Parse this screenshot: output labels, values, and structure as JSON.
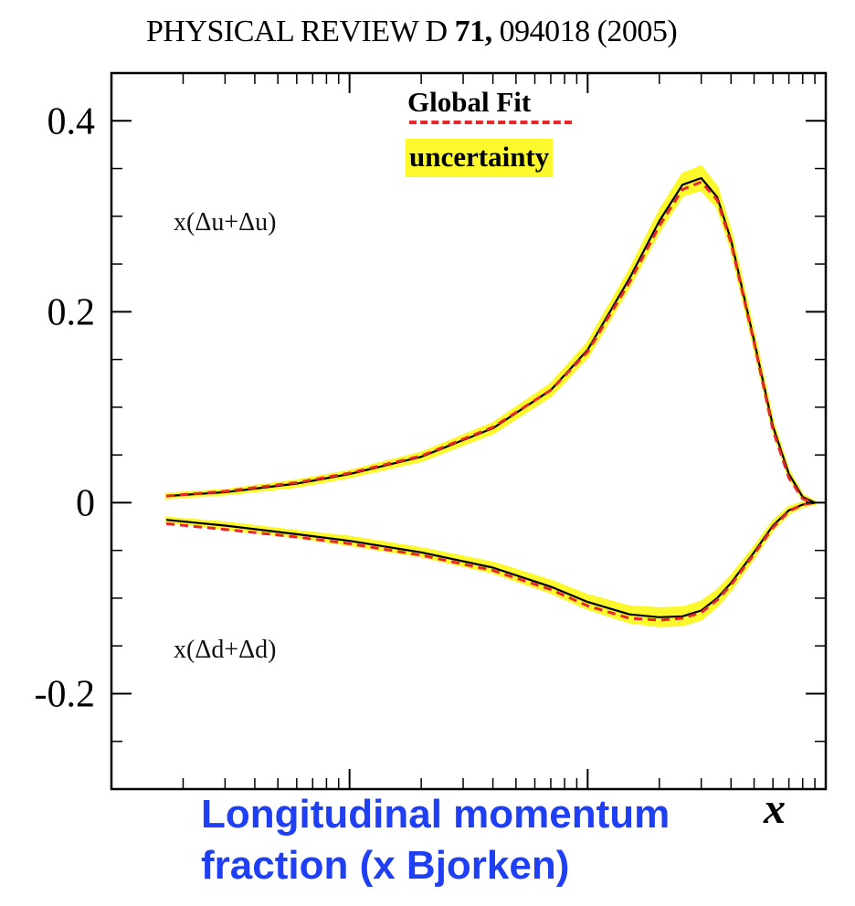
{
  "header": {
    "journal": "PHYSICAL REVIEW D",
    "volume": "71,",
    "article": "094018 (2005)"
  },
  "legend": {
    "fit_label": "Global Fit",
    "uncertainty_label": "uncertainty"
  },
  "labels": {
    "upper_curve": "x(Δu+Δu)",
    "lower_curve": "x(Δd+Δd)",
    "x_axis_symbol": "x",
    "x_axis_title_line1": "Longitudinal momentum",
    "x_axis_title_line2": "fraction (x Bjorken)"
  },
  "colors": {
    "band": "#fbf82b",
    "fit_line": "#e8262a",
    "central": "#000000",
    "xlabel": "#1f3ff5"
  },
  "chart_data": {
    "type": "line",
    "xscale": "log",
    "xlim": [
      0.001,
      1
    ],
    "ylim": [
      -0.3,
      0.45
    ],
    "yticks": [
      {
        "value": 0.4,
        "label": "0.4"
      },
      {
        "value": 0.2,
        "label": "0.2"
      },
      {
        "value": 0,
        "label": "0"
      },
      {
        "value": -0.2,
        "label": "-0.2"
      }
    ],
    "series": [
      {
        "name": "x(Δu+Δu)",
        "x": [
          0.0017,
          0.003,
          0.006,
          0.01,
          0.02,
          0.04,
          0.07,
          0.1,
          0.15,
          0.2,
          0.25,
          0.3,
          0.35,
          0.4,
          0.5,
          0.6,
          0.7,
          0.8,
          0.9
        ],
        "central": [
          0.007,
          0.011,
          0.02,
          0.03,
          0.048,
          0.078,
          0.118,
          0.16,
          0.235,
          0.295,
          0.333,
          0.34,
          0.32,
          0.275,
          0.17,
          0.08,
          0.03,
          0.006,
          0.0
        ],
        "fit": [
          0.007,
          0.012,
          0.021,
          0.031,
          0.049,
          0.079,
          0.118,
          0.158,
          0.231,
          0.29,
          0.328,
          0.336,
          0.317,
          0.272,
          0.168,
          0.076,
          0.026,
          0.004,
          0.0
        ],
        "band": [
          0.002,
          0.002,
          0.003,
          0.003,
          0.004,
          0.005,
          0.006,
          0.007,
          0.008,
          0.01,
          0.011,
          0.012,
          0.01,
          0.008,
          0.006,
          0.004,
          0.003,
          0.002,
          0.001
        ]
      },
      {
        "name": "x(Δd+Δd)",
        "x": [
          0.0017,
          0.003,
          0.006,
          0.01,
          0.02,
          0.04,
          0.07,
          0.1,
          0.15,
          0.2,
          0.25,
          0.3,
          0.35,
          0.4,
          0.5,
          0.6,
          0.7,
          0.8,
          0.9
        ],
        "central": [
          -0.018,
          -0.024,
          -0.033,
          -0.04,
          -0.052,
          -0.068,
          -0.088,
          -0.104,
          -0.117,
          -0.12,
          -0.119,
          -0.113,
          -0.1,
          -0.084,
          -0.052,
          -0.024,
          -0.008,
          -0.002,
          0.0
        ],
        "fit": [
          -0.022,
          -0.028,
          -0.036,
          -0.043,
          -0.055,
          -0.071,
          -0.091,
          -0.108,
          -0.121,
          -0.123,
          -0.121,
          -0.115,
          -0.102,
          -0.086,
          -0.054,
          -0.026,
          -0.009,
          -0.002,
          0.0
        ],
        "band": [
          0.002,
          0.003,
          0.003,
          0.004,
          0.004,
          0.005,
          0.006,
          0.007,
          0.008,
          0.009,
          0.009,
          0.009,
          0.008,
          0.007,
          0.005,
          0.004,
          0.003,
          0.002,
          0.001
        ]
      }
    ]
  }
}
